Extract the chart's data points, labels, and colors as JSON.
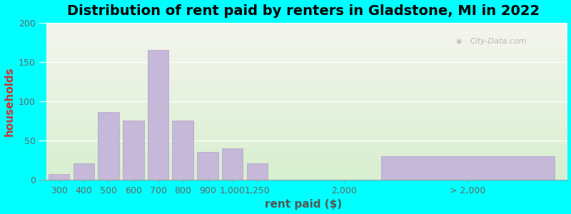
{
  "title": "Distribution of rent paid by renters in Gladstone, MI in 2022",
  "xlabel": "rent paid ($)",
  "ylabel": "households",
  "bar_color": "#c5b8d8",
  "bar_edge_color": "#b0a0c8",
  "categories": [
    "300",
    "400",
    "500",
    "600",
    "700",
    "800",
    "900",
    "1,000",
    "1,250",
    "2,000",
    "> 2,000"
  ],
  "values": [
    7,
    21,
    86,
    75,
    165,
    75,
    35,
    40,
    21,
    0,
    30
  ],
  "ylim": [
    0,
    200
  ],
  "yticks": [
    0,
    50,
    100,
    150,
    200
  ],
  "title_fontsize": 14,
  "axis_label_fontsize": 11,
  "tick_fontsize": 9,
  "bg_color_top": "#f5f5ee",
  "bg_color_bottom": "#d8efd0",
  "outer_background": "#00ffff",
  "watermark_text": "City-Data.com",
  "ylabel_color": "#cc3333",
  "xlabel_color": "#555555",
  "tick_color": "#666666"
}
